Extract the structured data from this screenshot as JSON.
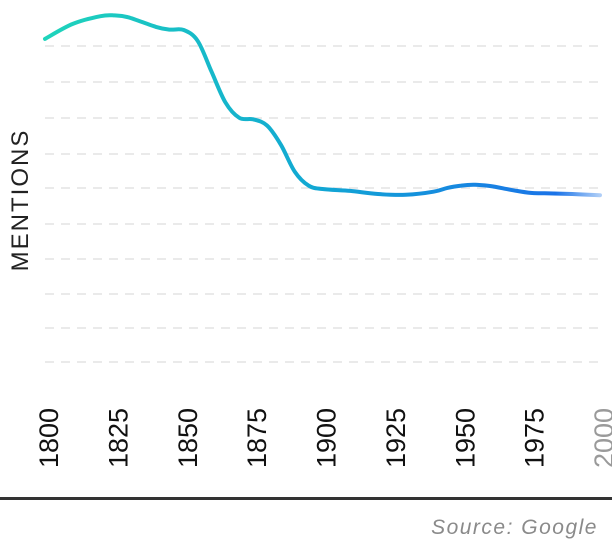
{
  "chart_data": {
    "type": "line",
    "title": "",
    "xlabel": "",
    "ylabel": "MENTIONS",
    "xlim": [
      1800,
      2000
    ],
    "ylim": [
      0,
      1
    ],
    "grid": true,
    "x_ticks": [
      {
        "label": "1800",
        "value": 1800
      },
      {
        "label": "1825",
        "value": 1825
      },
      {
        "label": "1850",
        "value": 1850
      },
      {
        "label": "1875",
        "value": 1875
      },
      {
        "label": "1900",
        "value": 1900
      },
      {
        "label": "1925",
        "value": 1925
      },
      {
        "label": "1950",
        "value": 1950
      },
      {
        "label": "1975",
        "value": 1975
      },
      {
        "label": "2000",
        "value": 2000
      }
    ],
    "series": [
      {
        "x": [
          1800,
          1810,
          1820,
          1825,
          1830,
          1840,
          1845,
          1850,
          1855,
          1860,
          1865,
          1870,
          1875,
          1880,
          1885,
          1890,
          1895,
          1900,
          1910,
          1920,
          1930,
          1940,
          1945,
          1950,
          1955,
          1960,
          1965,
          1970,
          1975,
          1980,
          1990,
          2000
        ],
        "y": [
          0.925,
          0.964,
          0.984,
          0.986,
          0.981,
          0.956,
          0.949,
          0.948,
          0.92,
          0.84,
          0.76,
          0.72,
          0.716,
          0.7,
          0.65,
          0.58,
          0.544,
          0.535,
          0.53,
          0.522,
          0.52,
          0.528,
          0.538,
          0.544,
          0.546,
          0.543,
          0.537,
          0.53,
          0.525,
          0.524,
          0.522,
          0.519
        ]
      }
    ]
  },
  "colors": {
    "line_start": "#1fd4bb",
    "line_mid": "#11a6d4",
    "line_end": "#1a73e8",
    "grid": "#e3e3e3",
    "tick_dim": "#9a9a9a"
  },
  "source_text": "Source: Google"
}
